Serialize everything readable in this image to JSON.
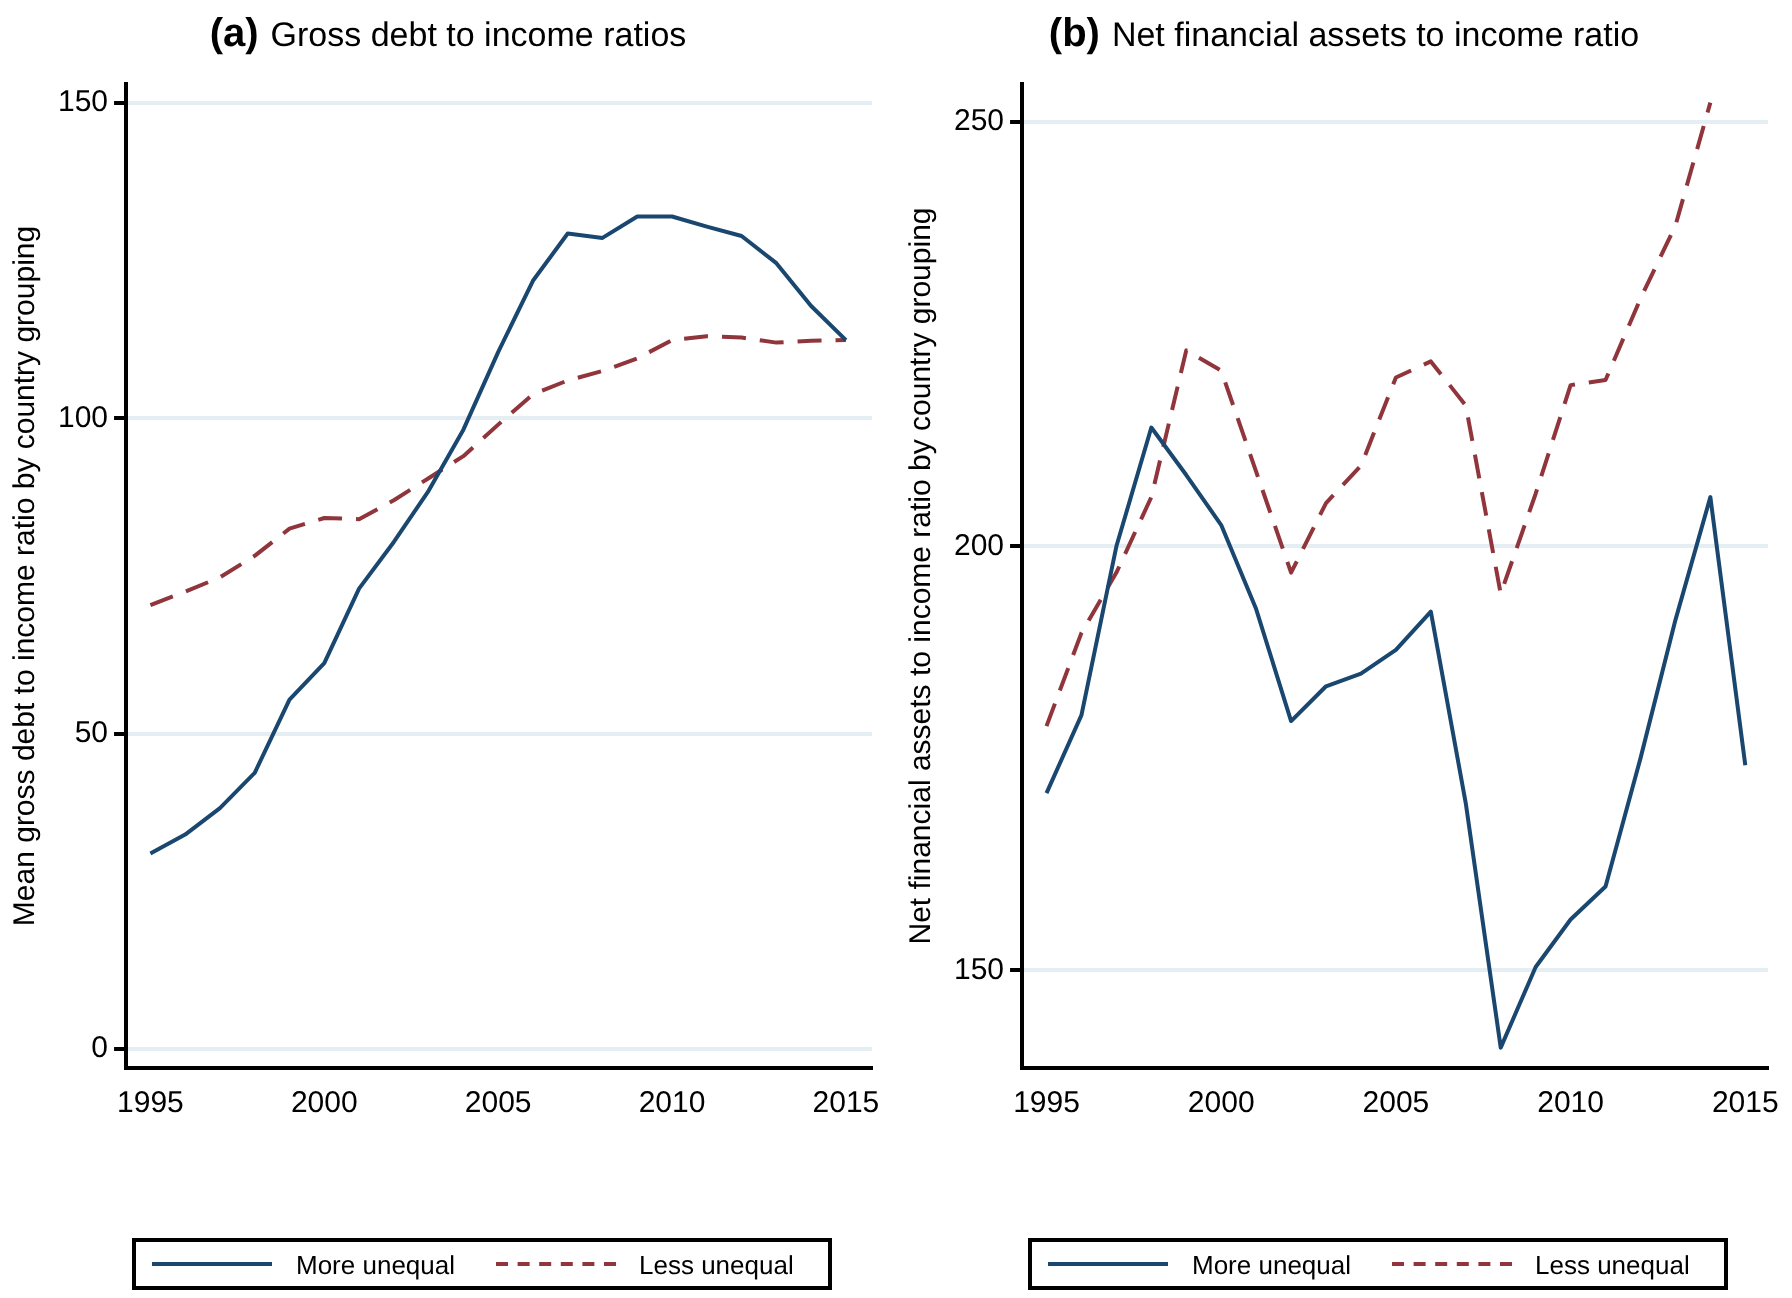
{
  "chart_data": [
    {
      "type": "line",
      "title": "(a) Gross debt to income ratios",
      "ylabel": "Mean gross debt to income ratio by country grouping",
      "x": [
        1995,
        1996,
        1997,
        1998,
        1999,
        2000,
        2001,
        2002,
        2003,
        2004,
        2005,
        2006,
        2007,
        2008,
        2009,
        2010,
        2011,
        2012,
        2013,
        2014,
        2015
      ],
      "series": [
        {
          "name": "More unequal",
          "color": "#1a476f",
          "line_style": "solid",
          "values": [
            31,
            34,
            38.2,
            43.8,
            55.4,
            61.2,
            73,
            80.4,
            88.5,
            98.2,
            110.5,
            121.8,
            129.3,
            128.6,
            132,
            132,
            130.4,
            128.9,
            124.6,
            117.8,
            112.4
          ]
        },
        {
          "name": "Less unequal",
          "color": "#90353b",
          "line_style": "dashed",
          "values": [
            70.4,
            72.5,
            74.8,
            78.2,
            82.5,
            84.2,
            84,
            87,
            90.5,
            94,
            99,
            103.8,
            106,
            107.5,
            109.5,
            112.4,
            113,
            112.8,
            112,
            112.3,
            112.4
          ]
        }
      ],
      "xlim": [
        1994.3,
        2015.75
      ],
      "xticks": [
        1995,
        2000,
        2005,
        2010,
        2015
      ],
      "ylim": [
        -3,
        153
      ],
      "yticks": [
        0,
        50,
        100,
        150
      ],
      "grid": "y",
      "legend": "bottom",
      "marker": "none"
    },
    {
      "type": "line",
      "title": "(b) Net financial assets to income ratio",
      "ylabel": "Net financial assets to income ratio by country grouping",
      "x": [
        1995,
        1996,
        1997,
        1998,
        1999,
        2000,
        2001,
        2002,
        2003,
        2004,
        2005,
        2006,
        2007,
        2008,
        2009,
        2010,
        2011,
        2012,
        2013,
        2014,
        2015
      ],
      "series": [
        {
          "name": "More unequal",
          "color": "#1a476f",
          "line_style": "solid",
          "values": [
            170.9,
            180.1,
            200,
            214,
            208.4,
            202.5,
            192.6,
            179.4,
            183.5,
            185,
            187.8,
            192.3,
            169.7,
            140.9,
            150.4,
            156,
            159.9,
            175,
            191.3,
            205.8,
            174.2
          ]
        },
        {
          "name": "Less unequal",
          "color": "#90353b",
          "line_style": "dashed",
          "values": [
            178.8,
            189.8,
            196.9,
            205.8,
            223.1,
            220.7,
            208.8,
            196.9,
            205.1,
            209.5,
            219.9,
            221.8,
            216.6,
            194.4,
            206.2,
            219,
            219.6,
            229.2,
            237.8,
            252.3,
            null
          ]
        }
      ],
      "xlim": [
        1994.3,
        2015.65
      ],
      "xticks": [
        1995,
        2000,
        2005,
        2010,
        2015
      ],
      "ylim": [
        138.5,
        254.5
      ],
      "yticks": [
        150,
        200,
        250
      ],
      "grid": "y",
      "legend": "bottom",
      "marker": "none"
    }
  ]
}
